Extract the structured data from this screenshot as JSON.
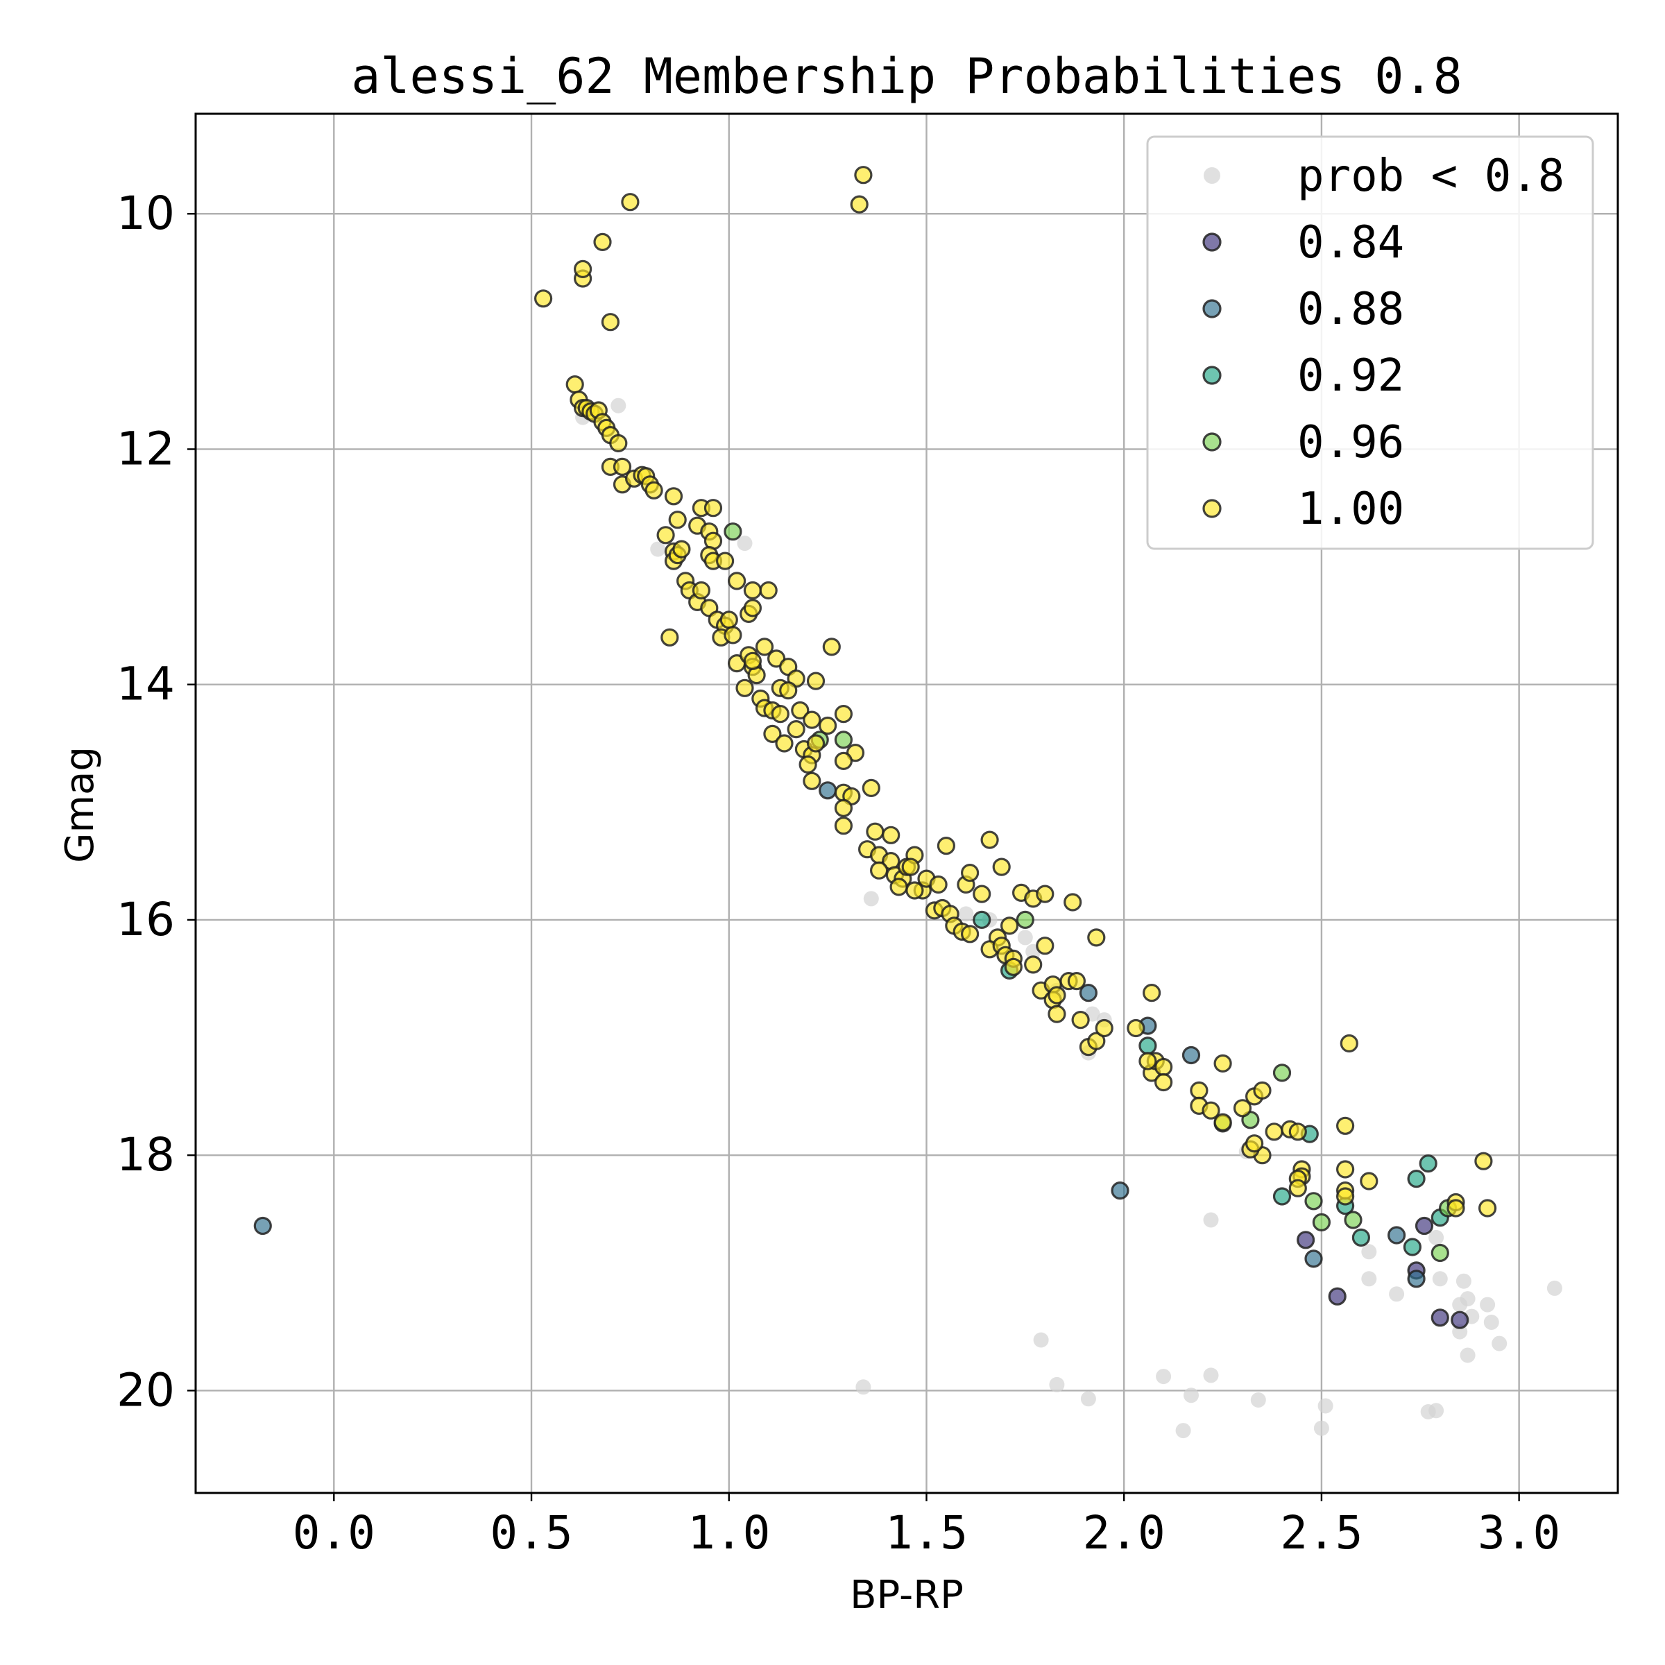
{
  "chart_data": {
    "type": "scatter",
    "title": "alessi_62 Membership Probabilities 0.8",
    "xlabel": "BP-RP",
    "ylabel": "Gmag",
    "xlim": [
      -0.35,
      3.25
    ],
    "ylim": [
      20.87,
      9.15
    ],
    "y_inverted": true,
    "grid": true,
    "legend_position": "top-right",
    "xticks": [
      "0.0",
      "0.5",
      "1.0",
      "1.5",
      "2.0",
      "2.5",
      "3.0"
    ],
    "xtick_values": [
      0.0,
      0.5,
      1.0,
      1.5,
      2.0,
      2.5,
      3.0
    ],
    "yticks": [
      "10",
      "12",
      "14",
      "16",
      "18",
      "20"
    ],
    "ytick_values": [
      10,
      12,
      14,
      16,
      18,
      20
    ],
    "colors": {
      "low": "#d3d3d3",
      "0.84": "#3b2f7a",
      "0.88": "#2e6f8e",
      "0.92": "#21a685",
      "0.96": "#7ad151",
      "1.00": "#fde725"
    },
    "legend": [
      {
        "label": "prob < 0.8",
        "key": "low"
      },
      {
        "label": "0.84",
        "key": "0.84"
      },
      {
        "label": "0.88",
        "key": "0.88"
      },
      {
        "label": "0.92",
        "key": "0.92"
      },
      {
        "label": "0.96",
        "key": "0.96"
      },
      {
        "label": "1.00",
        "key": "1.00"
      }
    ],
    "series": [
      {
        "key": "low",
        "name": "prob < 0.8",
        "points": [
          [
            0.63,
            11.73
          ],
          [
            0.72,
            11.63
          ],
          [
            0.82,
            12.85
          ],
          [
            1.04,
            12.8
          ],
          [
            1.36,
            15.82
          ],
          [
            1.6,
            15.95
          ],
          [
            1.66,
            16.0
          ],
          [
            1.75,
            16.15
          ],
          [
            1.77,
            16.27
          ],
          [
            1.83,
            16.6
          ],
          [
            1.92,
            16.8
          ],
          [
            1.95,
            16.85
          ],
          [
            1.91,
            17.13
          ],
          [
            2.31,
            17.97
          ],
          [
            2.22,
            18.55
          ],
          [
            2.62,
            18.82
          ],
          [
            2.79,
            18.7
          ],
          [
            2.62,
            19.05
          ],
          [
            2.69,
            19.18
          ],
          [
            2.8,
            19.05
          ],
          [
            2.86,
            19.07
          ],
          [
            2.87,
            19.22
          ],
          [
            2.85,
            19.27
          ],
          [
            2.92,
            19.27
          ],
          [
            2.88,
            19.37
          ],
          [
            2.93,
            19.42
          ],
          [
            2.85,
            19.5
          ],
          [
            2.95,
            19.6
          ],
          [
            2.87,
            19.7
          ],
          [
            3.09,
            19.13
          ],
          [
            1.79,
            19.57
          ],
          [
            1.34,
            19.97
          ],
          [
            1.83,
            19.95
          ],
          [
            1.91,
            20.07
          ],
          [
            2.1,
            19.88
          ],
          [
            2.22,
            19.87
          ],
          [
            2.17,
            20.04
          ],
          [
            2.34,
            20.08
          ],
          [
            2.15,
            20.34
          ],
          [
            2.51,
            20.13
          ],
          [
            2.5,
            20.32
          ],
          [
            2.77,
            20.18
          ],
          [
            2.79,
            20.17
          ]
        ]
      },
      {
        "key": "0.84",
        "name": "0.84",
        "points": [
          [
            2.76,
            18.6
          ],
          [
            2.46,
            18.72
          ],
          [
            2.74,
            18.98
          ],
          [
            2.54,
            19.2
          ],
          [
            2.8,
            19.38
          ],
          [
            2.85,
            19.4
          ]
        ]
      },
      {
        "key": "0.88",
        "name": "0.88",
        "points": [
          [
            -0.18,
            18.6
          ],
          [
            1.25,
            14.9
          ],
          [
            1.91,
            16.62
          ],
          [
            2.06,
            16.9
          ],
          [
            2.17,
            17.15
          ],
          [
            1.99,
            18.3
          ],
          [
            2.48,
            18.88
          ],
          [
            2.74,
            19.05
          ],
          [
            2.69,
            18.68
          ]
        ]
      },
      {
        "key": "0.92",
        "name": "0.92",
        "points": [
          [
            1.64,
            16.0
          ],
          [
            1.71,
            16.43
          ],
          [
            2.06,
            17.07
          ],
          [
            2.4,
            18.35
          ],
          [
            2.47,
            17.82
          ],
          [
            2.56,
            18.43
          ],
          [
            2.6,
            18.7
          ],
          [
            2.73,
            18.78
          ],
          [
            2.74,
            18.2
          ],
          [
            2.77,
            18.07
          ],
          [
            2.8,
            18.53
          ]
        ]
      },
      {
        "key": "0.96",
        "name": "0.96",
        "points": [
          [
            1.23,
            14.47
          ],
          [
            1.29,
            14.47
          ],
          [
            1.75,
            16.0
          ],
          [
            2.25,
            17.73
          ],
          [
            2.32,
            17.7
          ],
          [
            2.4,
            17.3
          ],
          [
            2.48,
            18.39
          ],
          [
            2.5,
            18.57
          ],
          [
            2.58,
            18.55
          ],
          [
            2.8,
            18.83
          ],
          [
            2.82,
            18.45
          ],
          [
            1.01,
            12.7
          ]
        ]
      },
      {
        "key": "1.00",
        "name": "1.00",
        "points": [
          [
            0.53,
            10.72
          ],
          [
            0.63,
            10.55
          ],
          [
            0.63,
            10.47
          ],
          [
            0.68,
            10.24
          ],
          [
            0.75,
            9.9
          ],
          [
            0.7,
            10.92
          ],
          [
            1.34,
            9.67
          ],
          [
            1.33,
            9.92
          ],
          [
            0.61,
            11.45
          ],
          [
            0.62,
            11.58
          ],
          [
            0.63,
            11.65
          ],
          [
            0.64,
            11.65
          ],
          [
            0.65,
            11.68
          ],
          [
            0.66,
            11.7
          ],
          [
            0.67,
            11.67
          ],
          [
            0.68,
            11.77
          ],
          [
            0.69,
            11.82
          ],
          [
            0.7,
            11.88
          ],
          [
            0.72,
            11.95
          ],
          [
            0.7,
            12.15
          ],
          [
            0.73,
            12.15
          ],
          [
            0.73,
            12.3
          ],
          [
            0.76,
            12.25
          ],
          [
            0.78,
            12.22
          ],
          [
            0.79,
            12.23
          ],
          [
            0.8,
            12.3
          ],
          [
            0.81,
            12.35
          ],
          [
            0.86,
            12.4
          ],
          [
            0.84,
            12.73
          ],
          [
            0.86,
            12.87
          ],
          [
            0.86,
            12.95
          ],
          [
            0.87,
            12.9
          ],
          [
            0.88,
            12.85
          ],
          [
            0.87,
            12.6
          ],
          [
            0.92,
            12.65
          ],
          [
            0.93,
            12.5
          ],
          [
            0.96,
            12.5
          ],
          [
            0.95,
            12.7
          ],
          [
            0.96,
            12.78
          ],
          [
            0.95,
            12.9
          ],
          [
            0.96,
            12.95
          ],
          [
            0.99,
            12.95
          ],
          [
            0.89,
            13.12
          ],
          [
            0.9,
            13.2
          ],
          [
            0.92,
            13.3
          ],
          [
            0.93,
            13.2
          ],
          [
            0.95,
            13.35
          ],
          [
            0.97,
            13.45
          ],
          [
            0.99,
            13.5
          ],
          [
            1.0,
            13.45
          ],
          [
            1.02,
            13.12
          ],
          [
            1.06,
            13.2
          ],
          [
            1.1,
            13.2
          ],
          [
            1.05,
            13.4
          ],
          [
            1.06,
            13.35
          ],
          [
            0.98,
            13.6
          ],
          [
            1.01,
            13.58
          ],
          [
            0.85,
            13.6
          ],
          [
            1.02,
            13.82
          ],
          [
            1.05,
            13.75
          ],
          [
            1.06,
            13.85
          ],
          [
            1.07,
            13.92
          ],
          [
            1.06,
            13.8
          ],
          [
            1.09,
            13.68
          ],
          [
            1.12,
            13.78
          ],
          [
            1.15,
            13.85
          ],
          [
            1.17,
            13.95
          ],
          [
            1.22,
            13.97
          ],
          [
            1.26,
            13.68
          ],
          [
            1.04,
            14.03
          ],
          [
            1.08,
            14.12
          ],
          [
            1.09,
            14.2
          ],
          [
            1.11,
            14.22
          ],
          [
            1.13,
            14.25
          ],
          [
            1.13,
            14.03
          ],
          [
            1.15,
            14.05
          ],
          [
            1.18,
            14.22
          ],
          [
            1.21,
            14.3
          ],
          [
            1.11,
            14.42
          ],
          [
            1.14,
            14.5
          ],
          [
            1.17,
            14.38
          ],
          [
            1.19,
            14.55
          ],
          [
            1.21,
            14.6
          ],
          [
            1.22,
            14.5
          ],
          [
            1.25,
            14.35
          ],
          [
            1.2,
            14.68
          ],
          [
            1.21,
            14.82
          ],
          [
            1.29,
            14.25
          ],
          [
            1.32,
            14.58
          ],
          [
            1.29,
            14.65
          ],
          [
            1.29,
            14.92
          ],
          [
            1.31,
            14.95
          ],
          [
            1.29,
            15.05
          ],
          [
            1.29,
            15.2
          ],
          [
            1.36,
            14.88
          ],
          [
            1.37,
            15.25
          ],
          [
            1.41,
            15.28
          ],
          [
            1.35,
            15.4
          ],
          [
            1.38,
            15.45
          ],
          [
            1.41,
            15.5
          ],
          [
            1.38,
            15.58
          ],
          [
            1.42,
            15.62
          ],
          [
            1.44,
            15.65
          ],
          [
            1.45,
            15.55
          ],
          [
            1.47,
            15.45
          ],
          [
            1.49,
            15.75
          ],
          [
            1.46,
            15.55
          ],
          [
            1.43,
            15.72
          ],
          [
            1.5,
            15.65
          ],
          [
            1.53,
            15.7
          ],
          [
            1.47,
            15.75
          ],
          [
            1.52,
            15.92
          ],
          [
            1.55,
            15.37
          ],
          [
            1.54,
            15.9
          ],
          [
            1.56,
            15.95
          ],
          [
            1.57,
            16.05
          ],
          [
            1.59,
            16.1
          ],
          [
            1.61,
            16.12
          ],
          [
            1.6,
            15.7
          ],
          [
            1.61,
            15.6
          ],
          [
            1.64,
            15.78
          ],
          [
            1.66,
            15.32
          ],
          [
            1.69,
            15.55
          ],
          [
            1.68,
            16.15
          ],
          [
            1.66,
            16.25
          ],
          [
            1.69,
            16.22
          ],
          [
            1.7,
            16.3
          ],
          [
            1.72,
            16.33
          ],
          [
            1.72,
            16.4
          ],
          [
            1.71,
            16.05
          ],
          [
            1.74,
            15.77
          ],
          [
            1.77,
            15.82
          ],
          [
            1.8,
            15.78
          ],
          [
            1.77,
            16.38
          ],
          [
            1.8,
            16.22
          ],
          [
            1.79,
            16.6
          ],
          [
            1.82,
            16.55
          ],
          [
            1.82,
            16.68
          ],
          [
            1.83,
            16.64
          ],
          [
            1.83,
            16.8
          ],
          [
            1.86,
            16.52
          ],
          [
            1.87,
            15.85
          ],
          [
            1.88,
            16.52
          ],
          [
            1.89,
            16.85
          ],
          [
            1.93,
            16.15
          ],
          [
            1.91,
            17.08
          ],
          [
            1.93,
            17.03
          ],
          [
            1.95,
            16.92
          ],
          [
            2.03,
            16.92
          ],
          [
            2.07,
            16.62
          ],
          [
            2.07,
            17.3
          ],
          [
            2.08,
            17.2
          ],
          [
            2.1,
            17.25
          ],
          [
            2.1,
            17.38
          ],
          [
            2.06,
            17.2
          ],
          [
            2.19,
            17.45
          ],
          [
            2.19,
            17.58
          ],
          [
            2.22,
            17.62
          ],
          [
            2.25,
            17.72
          ],
          [
            2.25,
            17.22
          ],
          [
            2.3,
            17.6
          ],
          [
            2.33,
            17.5
          ],
          [
            2.35,
            17.45
          ],
          [
            2.38,
            17.8
          ],
          [
            2.42,
            17.78
          ],
          [
            2.44,
            17.8
          ],
          [
            2.35,
            18.0
          ],
          [
            2.32,
            17.95
          ],
          [
            2.33,
            17.9
          ],
          [
            2.45,
            18.12
          ],
          [
            2.45,
            18.18
          ],
          [
            2.44,
            18.2
          ],
          [
            2.44,
            18.28
          ],
          [
            2.56,
            17.75
          ],
          [
            2.57,
            17.05
          ],
          [
            2.56,
            18.12
          ],
          [
            2.56,
            18.3
          ],
          [
            2.56,
            18.35
          ],
          [
            2.62,
            18.22
          ],
          [
            2.84,
            18.4
          ],
          [
            2.84,
            18.45
          ],
          [
            2.91,
            18.05
          ],
          [
            2.92,
            18.45
          ]
        ]
      }
    ]
  }
}
